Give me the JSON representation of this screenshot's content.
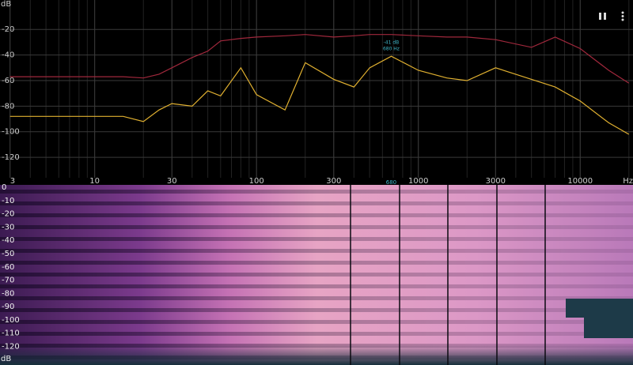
{
  "chart_data": [
    {
      "type": "line",
      "y_label": "dB",
      "x_label": "Hz",
      "log_x": true,
      "grid": true,
      "xlim": [
        2.6,
        21200
      ],
      "xticks": [
        3,
        10,
        30,
        100,
        300,
        1000,
        3000,
        10000
      ],
      "ylim": [
        -136,
        3
      ],
      "yticks": [
        -20,
        -40,
        -60,
        -80,
        -100,
        -120
      ],
      "x": [
        3,
        5,
        10,
        15,
        20,
        25,
        30,
        40,
        50,
        60,
        80,
        100,
        150,
        200,
        300,
        400,
        500,
        680,
        1000,
        1500,
        2000,
        3000,
        5000,
        7000,
        10000,
        15000,
        20000
      ],
      "series": [
        {
          "color": "#a0283c",
          "values": [
            -57,
            -57,
            -57,
            -57,
            -58,
            -55,
            -50,
            -42,
            -37,
            -29,
            -27,
            -26,
            -25,
            -24,
            -26,
            -25,
            -24,
            -24,
            -25,
            -26,
            -26,
            -28,
            -34,
            -26,
            -35,
            -52,
            -62
          ]
        },
        {
          "color": "#e0b030",
          "values": [
            -88,
            -88,
            -88,
            -88,
            -92,
            -83,
            -78,
            -80,
            -68,
            -72,
            -50,
            -71,
            -83,
            -46,
            -59,
            -65,
            -50,
            -41,
            -52,
            -58,
            -60,
            -50,
            -59,
            -65,
            -76,
            -93,
            -102
          ]
        }
      ],
      "annotation": [
        "-41 dB",
        "680 Hz"
      ]
    },
    {
      "type": "heatmap",
      "y_label": "dB",
      "cursor": 680,
      "xlim": [
        2.6,
        21200
      ],
      "ylim": [
        -134,
        3
      ],
      "yticks": [
        0,
        -10,
        -20,
        -30,
        -40,
        -50,
        -60,
        -70,
        -80,
        -90,
        -100,
        -110,
        -120
      ]
    }
  ]
}
